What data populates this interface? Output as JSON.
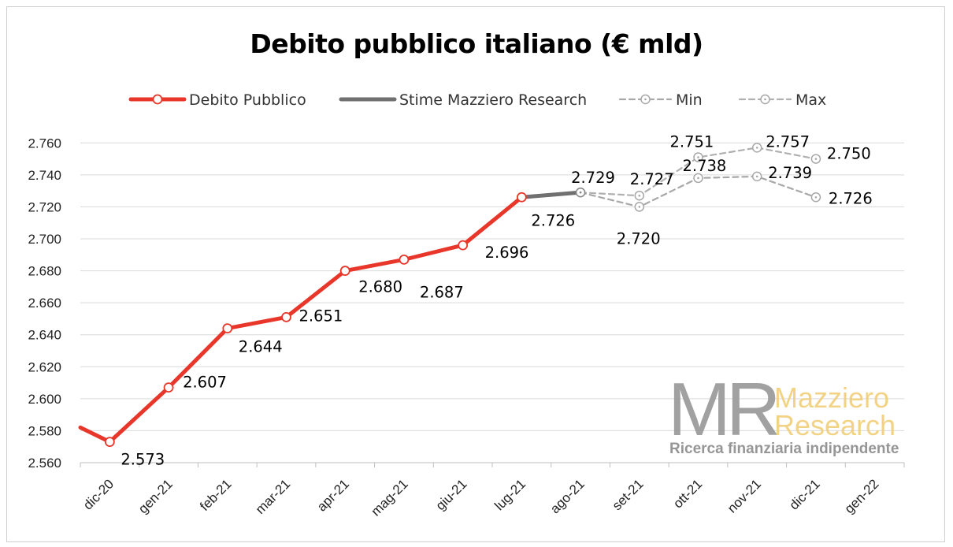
{
  "chart_data": {
    "type": "line",
    "title": "Debito pubblico italiano (€ mld)",
    "categories": [
      "dic-20",
      "gen-21",
      "feb-21",
      "mar-21",
      "apr-21",
      "mag-21",
      "giu-21",
      "lug-21",
      "ago-21",
      "set-21",
      "ott-21",
      "nov-21",
      "dic-21",
      "gen-22"
    ],
    "y_ticks": [
      "2.560",
      "2.580",
      "2.600",
      "2.620",
      "2.640",
      "2.660",
      "2.680",
      "2.700",
      "2.720",
      "2.740",
      "2.760"
    ],
    "ylim": [
      2560,
      2770
    ],
    "grid": true,
    "legend_position": "top",
    "series": [
      {
        "name": "Debito Pubblico",
        "color": "#e8372a",
        "style": "solid",
        "lead_in_value": 2582,
        "points": [
          {
            "category": "dic-20",
            "value": 2573,
            "label": "2.573"
          },
          {
            "category": "gen-21",
            "value": 2607,
            "label": "2.607"
          },
          {
            "category": "feb-21",
            "value": 2644,
            "label": "2.644"
          },
          {
            "category": "mar-21",
            "value": 2651,
            "label": "2.651"
          },
          {
            "category": "apr-21",
            "value": 2680,
            "label": "2.680"
          },
          {
            "category": "mag-21",
            "value": 2687,
            "label": "2.687"
          },
          {
            "category": "giu-21",
            "value": 2696,
            "label": "2.696"
          },
          {
            "category": "lug-21",
            "value": 2726,
            "label": "2.726"
          }
        ]
      },
      {
        "name": "Stime Mazziero Research",
        "color": "#707070",
        "style": "solid",
        "points": [
          {
            "category": "lug-21",
            "value": 2726
          },
          {
            "category": "ago-21",
            "value": 2729,
            "label": "2.729"
          }
        ]
      },
      {
        "name": "Min",
        "color": "#a8a8a8",
        "style": "dashed",
        "points": [
          {
            "category": "ago-21",
            "value": 2729
          },
          {
            "category": "set-21",
            "value": 2720,
            "label": "2.720"
          },
          {
            "category": "ott-21",
            "value": 2738,
            "label": "2.738"
          },
          {
            "category": "nov-21",
            "value": 2739,
            "label": "2.739"
          },
          {
            "category": "dic-21",
            "value": 2726,
            "label": "2.726"
          }
        ]
      },
      {
        "name": "Max",
        "color": "#b0b0b0",
        "style": "dashed",
        "points": [
          {
            "category": "ago-21",
            "value": 2729
          },
          {
            "category": "set-21",
            "value": 2727,
            "label": "2.727"
          },
          {
            "category": "ott-21",
            "value": 2751,
            "label": "2.751"
          },
          {
            "category": "nov-21",
            "value": 2757,
            "label": "2.757"
          },
          {
            "category": "dic-21",
            "value": 2750,
            "label": "2.750"
          }
        ]
      }
    ]
  },
  "watermark": {
    "monogram": "MR",
    "name_line1": "Mazziero",
    "name_line2": "Research",
    "tagline": "Ricerca finanziaria indipendente"
  }
}
